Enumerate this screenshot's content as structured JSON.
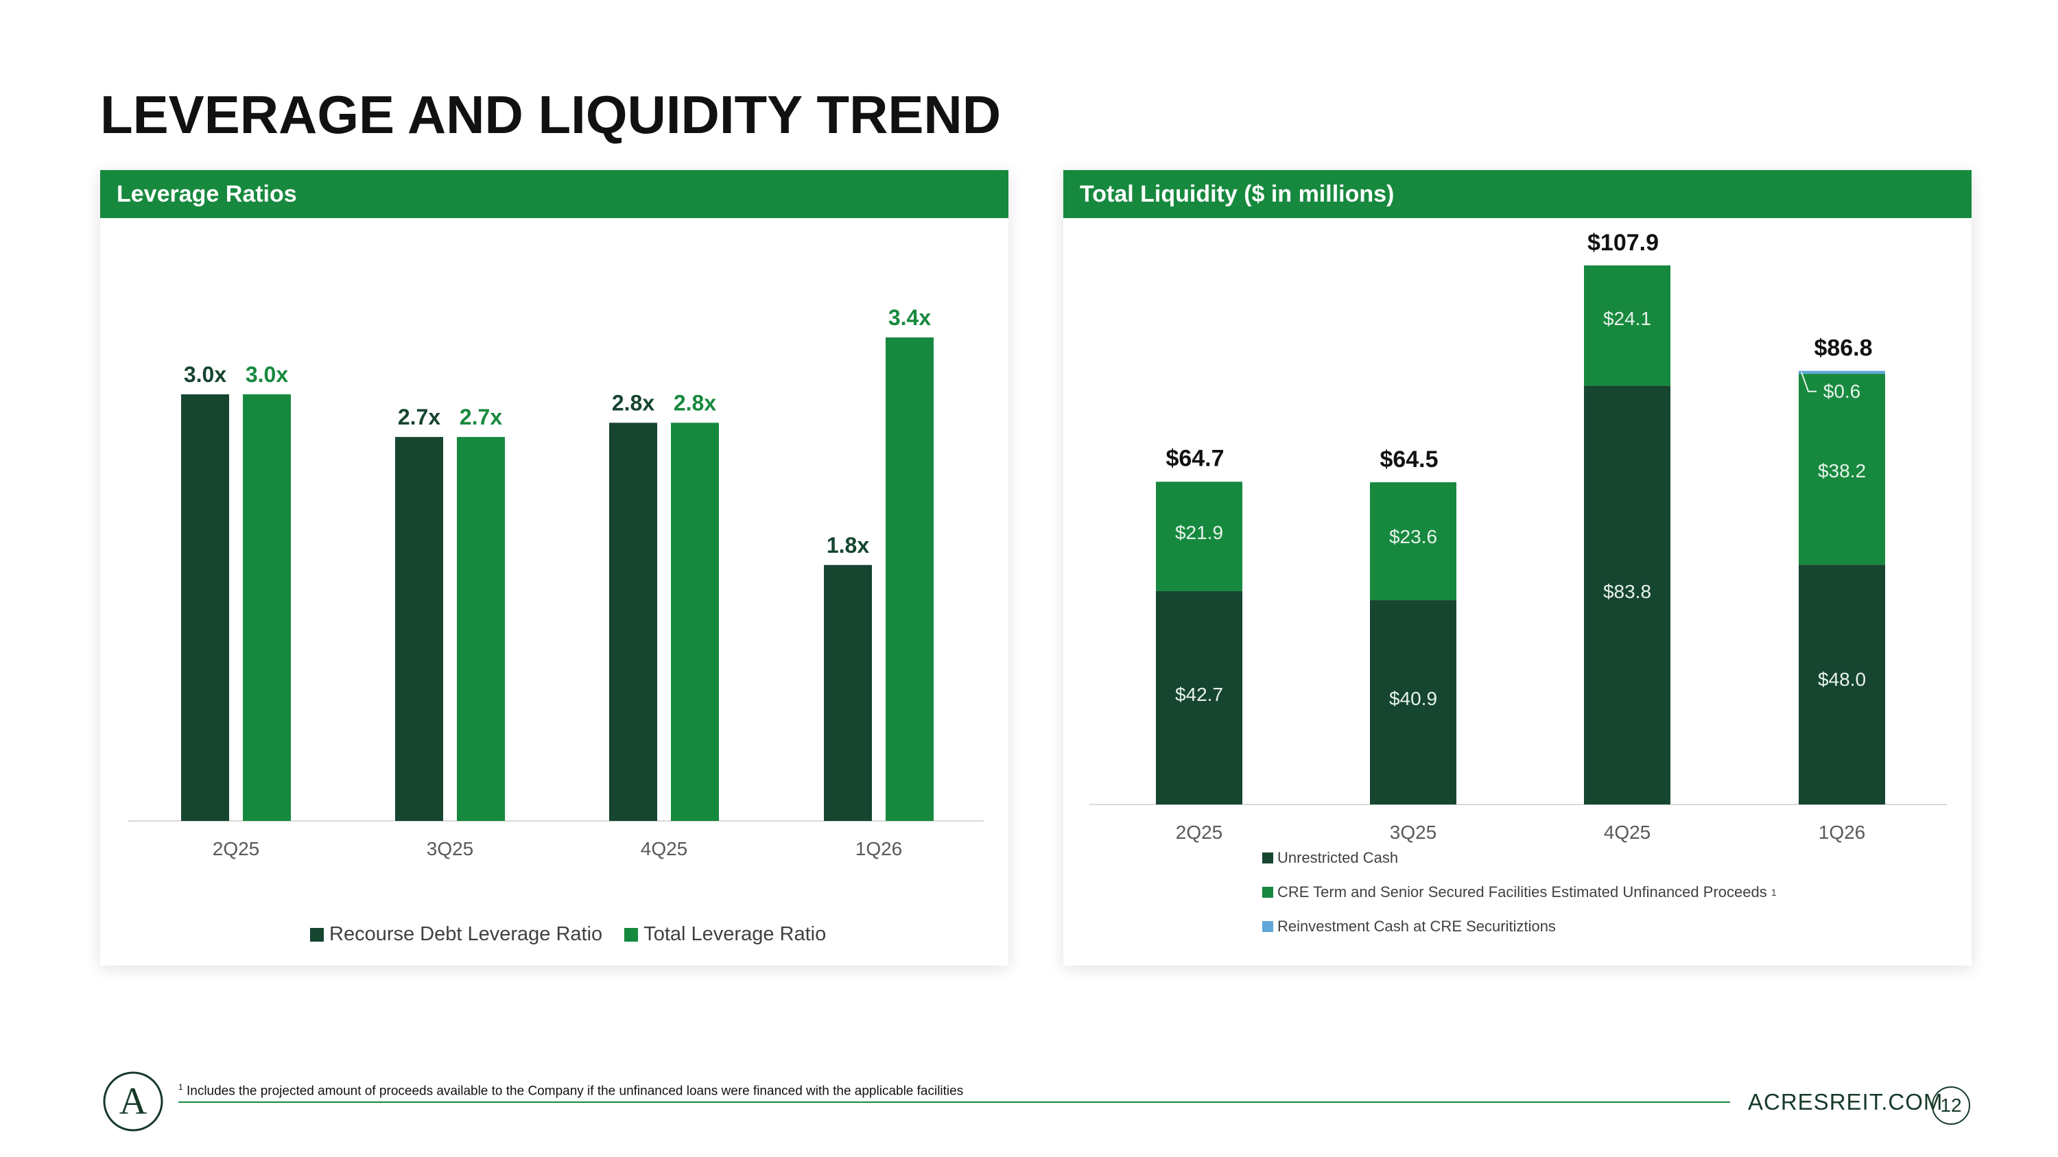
{
  "page": {
    "title": "LEVERAGE AND LIQUIDITY TREND",
    "footnote_mark": "1",
    "footnote": "Includes the projected amount of proceeds available to the Company if the unfinanced loans were financed with the applicable facilities",
    "site": "ACRESREIT.COM",
    "page_number": "12",
    "logo_letter": "A"
  },
  "colors": {
    "dark_green": "#164530",
    "bright_green": "#17893e",
    "light_blue": "#5fa8d8",
    "header_green": "#17893e"
  },
  "chart_data": [
    {
      "type": "bar",
      "title": "Leverage Ratios",
      "categories": [
        "2Q25",
        "3Q25",
        "4Q25",
        "1Q26"
      ],
      "series": [
        {
          "name": "Recourse Debt Leverage Ratio",
          "values": [
            3.0,
            2.7,
            2.8,
            1.8
          ],
          "labels": [
            "3.0x",
            "2.7x",
            "2.8x",
            "1.8x"
          ],
          "color": "#164530"
        },
        {
          "name": "Total Leverage Ratio",
          "values": [
            3.0,
            2.7,
            2.8,
            3.4
          ],
          "labels": [
            "3.0x",
            "2.7x",
            "2.8x",
            "3.4x"
          ],
          "color": "#17893e"
        }
      ],
      "ylim": [
        0,
        3.4
      ],
      "grid": false,
      "legend": "bottom"
    },
    {
      "type": "bar",
      "stacked": true,
      "title": "Total Liquidity ($ in millions)",
      "categories": [
        "2Q25",
        "3Q25",
        "4Q25",
        "1Q26"
      ],
      "series": [
        {
          "name": "Unrestricted Cash",
          "values": [
            42.7,
            40.9,
            83.8,
            48.0
          ],
          "labels": [
            "$42.7",
            "$40.9",
            "$83.8",
            "$48.0"
          ],
          "color": "#164530"
        },
        {
          "name": "CRE Term and Senior Secured Facilities Estimated Unfinanced Proceeds",
          "name_sup": "1",
          "values": [
            21.9,
            23.6,
            24.1,
            38.2
          ],
          "labels": [
            "$21.9",
            "$23.6",
            "$24.1",
            "$38.2"
          ],
          "color": "#17893e"
        },
        {
          "name": "Reinvestment Cash at CRE Securitiztions",
          "values": [
            0,
            0,
            0,
            0.6
          ],
          "labels": [
            "",
            "",
            "",
            "$0.6"
          ],
          "color": "#5fa8d8"
        }
      ],
      "totals": [
        "$64.7",
        "$64.5",
        "$107.9",
        "$86.8"
      ],
      "total_values": [
        64.7,
        64.5,
        107.9,
        86.8
      ],
      "ylim": [
        0,
        107.9
      ],
      "grid": false,
      "legend": "bottom"
    }
  ]
}
